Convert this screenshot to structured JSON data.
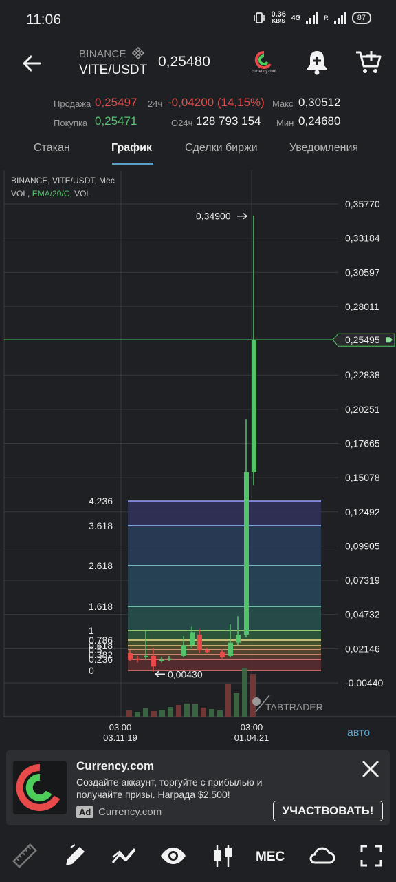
{
  "status": {
    "time": "11:06",
    "speed": "0.36",
    "speed_unit": "KB/S",
    "network": "4G",
    "roaming": "R",
    "battery": "87"
  },
  "header": {
    "exchange": "BINANCE",
    "pair": "VITE/USDT",
    "last_price": "0,25480",
    "logo_text": "currency.com"
  },
  "stats": {
    "sell_label": "Продажа",
    "sell_value": "0,25497",
    "buy_label": "Покупка",
    "buy_value": "0,25471",
    "change_label": "24ч",
    "change_value": "-0,04200 (14,15%)",
    "volume_label": "O24ч",
    "volume_value": "128 793 154",
    "max_label": "Макс",
    "max_value": "0,30512",
    "min_label": "Мин",
    "min_value": "0,24680"
  },
  "tabs": [
    {
      "label": "Стакан"
    },
    {
      "label": "График"
    },
    {
      "label": "Сделки биржи"
    },
    {
      "label": "Уведомления"
    }
  ],
  "chart_data": {
    "type": "candlestick",
    "info_line1": "BINANCE, VITE/USDT, Мес",
    "info_line2_vol": "VOL,",
    "info_line2_ema": "EMA/20/C,",
    "info_line2_vol2": "VOL",
    "y_ticks": [
      "0,35770",
      "0,33184",
      "0,30597",
      "0,28011",
      "0,25495",
      "0,22838",
      "0,20251",
      "0,17665",
      "0,15078",
      "0,12492",
      "0,09905",
      "0,07319",
      "0,04732",
      "0,02146",
      "-0,00440"
    ],
    "y_tick_values": [
      0.3577,
      0.33184,
      0.30597,
      0.28011,
      0.25495,
      0.22838,
      0.20251,
      0.17665,
      0.15078,
      0.12492,
      0.09905,
      0.07319,
      0.04732,
      0.02146,
      -0.0044
    ],
    "current_price_label": "0,25495",
    "current_price": 0.25495,
    "high_marker": "0,34900",
    "high_value": 0.349,
    "low_marker": "0,00430",
    "low_value": 0.0043,
    "fib_levels": [
      "4.236",
      "3.618",
      "2.618",
      "1.618",
      "1",
      "0.786",
      "0.618",
      "0.5",
      "0.382",
      "0.236",
      "0"
    ],
    "x_labels": [
      {
        "time": "03:00",
        "date": "03.11.19"
      },
      {
        "time": "03:00",
        "date": "01.04.21"
      }
    ],
    "watermark": "TABTRADER",
    "auto_label": "авто"
  },
  "ad": {
    "title": "Currency.com",
    "text": "Создайте аккаунт, торгуйте с прибылью и получайте призы. Награда $2,500!",
    "badge": "Ad",
    "advertiser": "Currency.com",
    "cta": "УЧАСТВОВАТЬ!"
  },
  "toolbar": {
    "period_label": "МЕС"
  },
  "colors": {
    "up": "#54c26a",
    "down": "#e84a4a",
    "accent": "#5aa0c8",
    "background": "#1f2023"
  }
}
